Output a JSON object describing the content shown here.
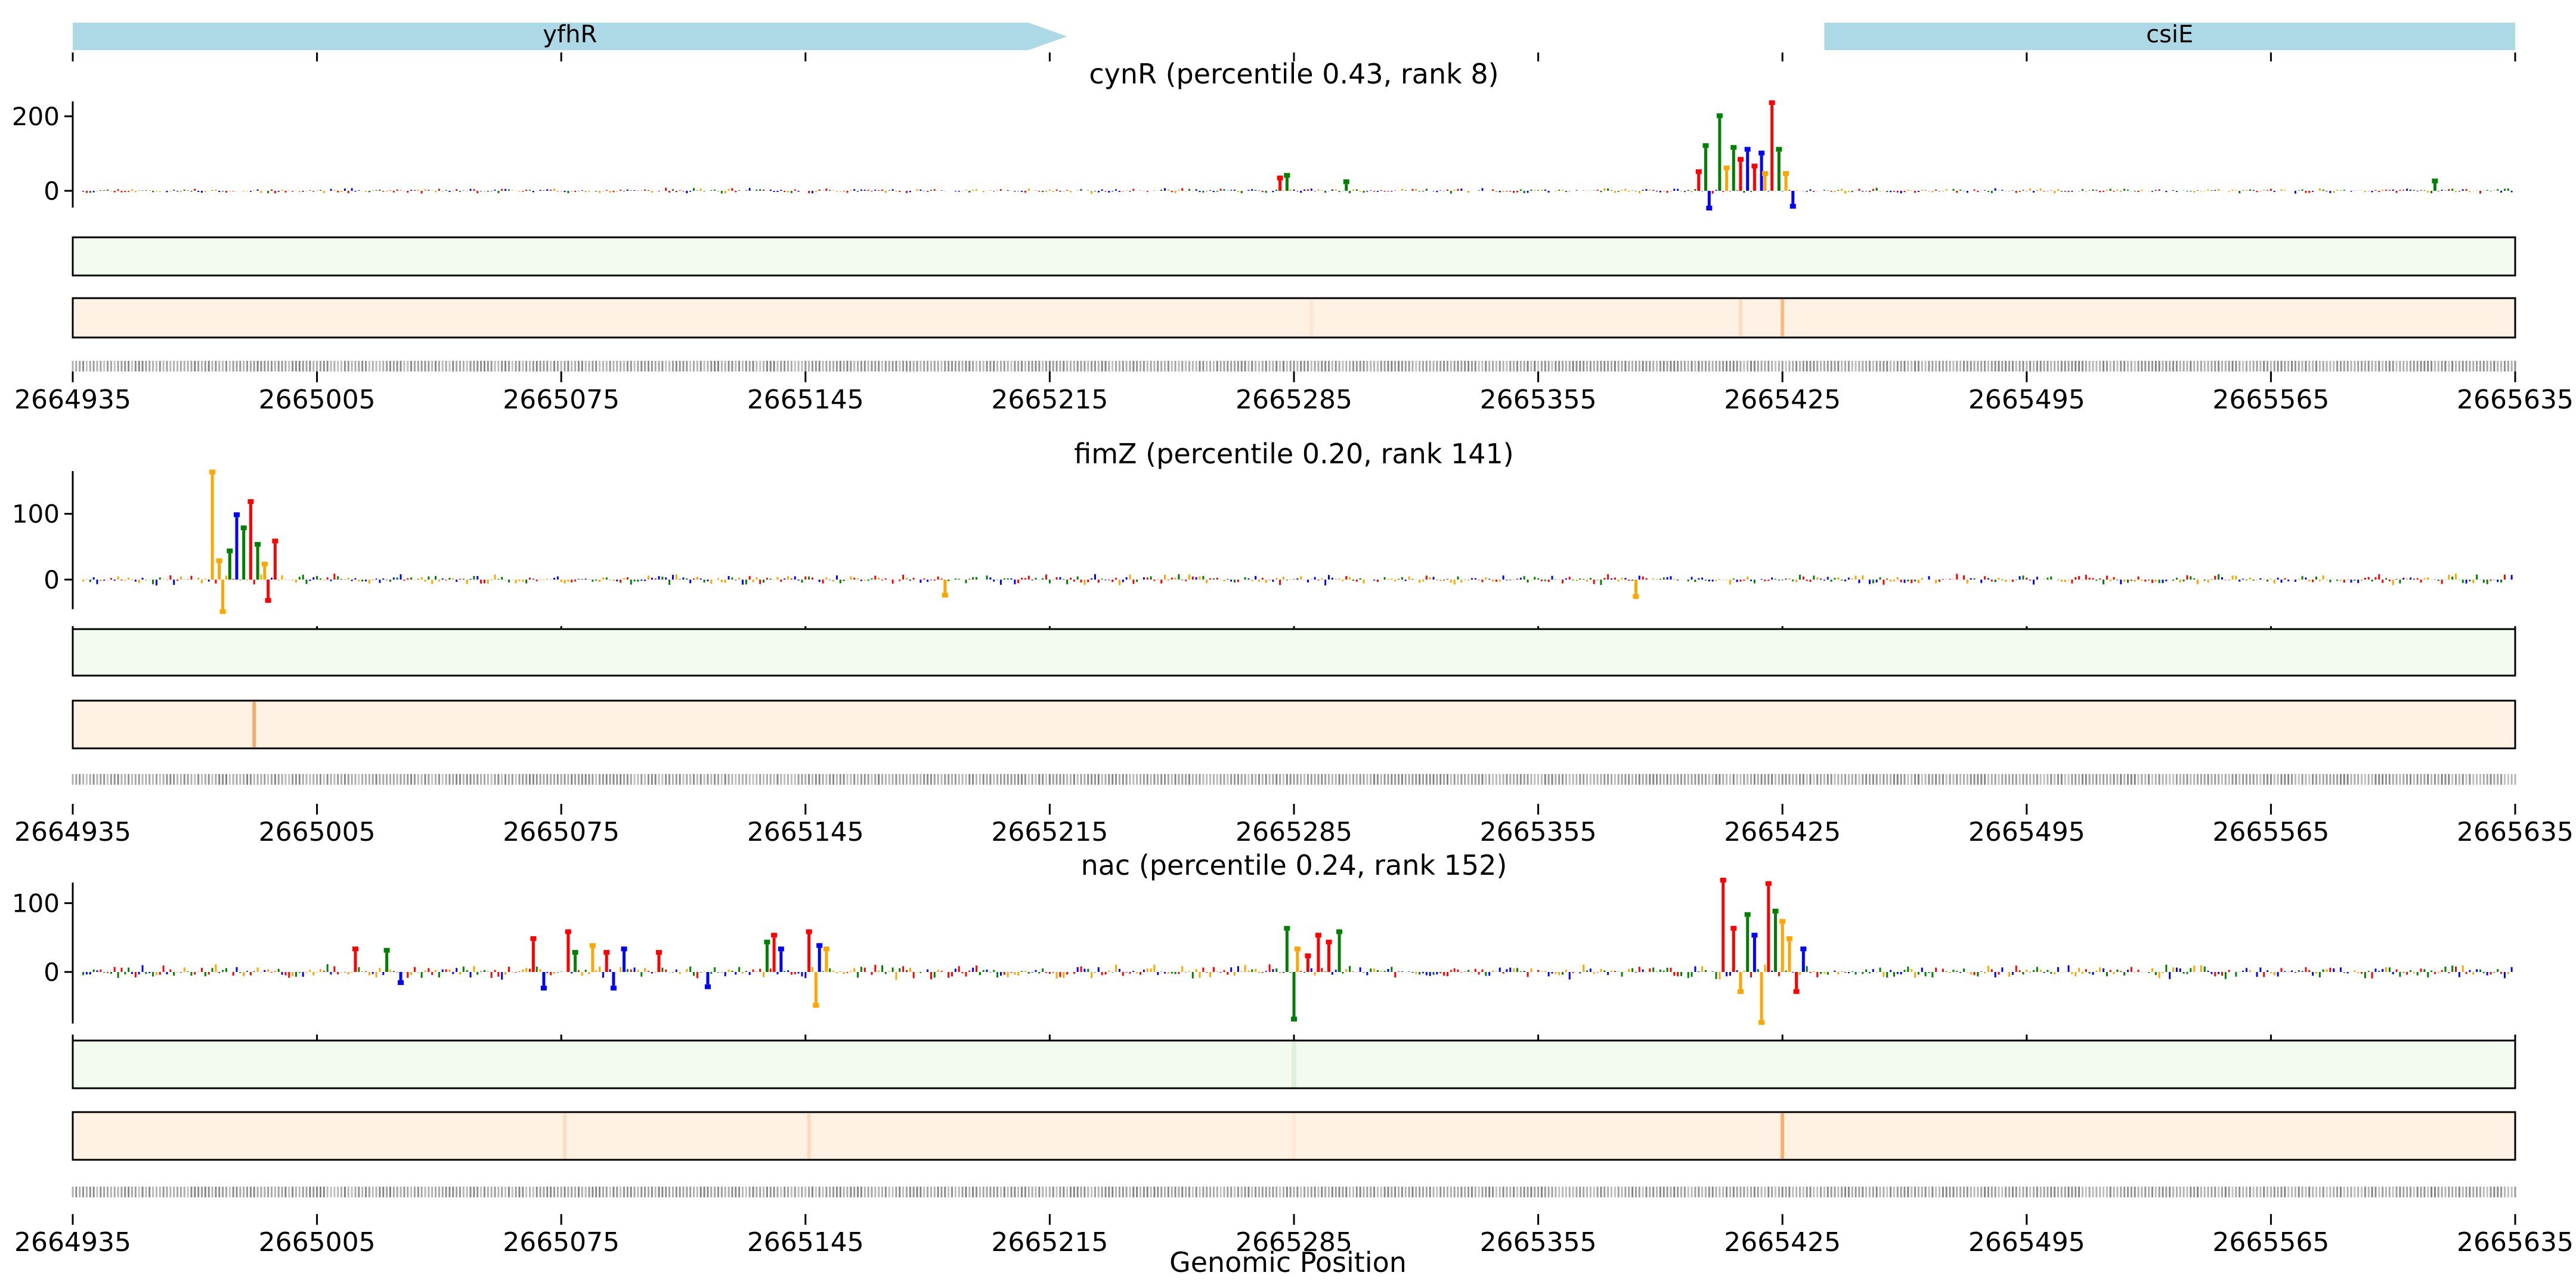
{
  "genes": [
    {
      "name": "yfhR",
      "start": 2664935,
      "end": 2665220,
      "strand": "+",
      "color": "#add8e6"
    },
    {
      "name": "csiE",
      "start": 2665437,
      "end": 2665635,
      "strand": "+",
      "color": "#add8e6"
    }
  ],
  "colors": {
    "A": "#008000",
    "C": "#0000ff",
    "G": "#ffa500",
    "T": "#ff0000",
    "green_track": "#f3faf0",
    "orange_track": "#fff1e4",
    "orange_peak": "#f5a55b",
    "seq_text": "#555555"
  },
  "chart_data": [
    {
      "type": "bar",
      "title": "cynR (percentile 0.43, rank 8)",
      "ylim": [
        -45,
        240
      ],
      "yticks": [
        0,
        200
      ],
      "xlim": [
        2664935,
        2665635
      ],
      "xticks": [
        "2664935",
        "2665005",
        "2665075",
        "2665145",
        "2665215",
        "2665285",
        "2665355",
        "2665425",
        "2665495",
        "2665565",
        "2665635"
      ],
      "noise_level": 6,
      "noise_seed": 11,
      "peaks": [
        {
          "x": 2665401,
          "value": 45,
          "base": "T"
        },
        {
          "x": 2665403,
          "value": 115,
          "base": "A"
        },
        {
          "x": 2665404,
          "value": -40,
          "base": "C"
        },
        {
          "x": 2665407,
          "value": 195,
          "base": "A"
        },
        {
          "x": 2665409,
          "value": 55,
          "base": "G"
        },
        {
          "x": 2665411,
          "value": 110,
          "base": "A"
        },
        {
          "x": 2665413,
          "value": 78,
          "base": "T"
        },
        {
          "x": 2665415,
          "value": 105,
          "base": "C"
        },
        {
          "x": 2665417,
          "value": 60,
          "base": "T"
        },
        {
          "x": 2665419,
          "value": 95,
          "base": "C"
        },
        {
          "x": 2665420,
          "value": 40,
          "base": "G"
        },
        {
          "x": 2665422,
          "value": 230,
          "base": "T"
        },
        {
          "x": 2665424,
          "value": 105,
          "base": "A"
        },
        {
          "x": 2665426,
          "value": 40,
          "base": "G"
        },
        {
          "x": 2665428,
          "value": -35,
          "base": "C"
        },
        {
          "x": 2665281,
          "value": 28,
          "base": "T"
        },
        {
          "x": 2665283,
          "value": 35,
          "base": "A"
        },
        {
          "x": 2665300,
          "value": 18,
          "base": "A"
        },
        {
          "x": 2665612,
          "value": 20,
          "base": "A"
        }
      ],
      "green_track": [],
      "orange_track": [
        {
          "x": 2665425,
          "value": 0.7
        },
        {
          "x": 2665413,
          "value": 0.25
        },
        {
          "x": 2665290,
          "value": 0.12
        }
      ]
    },
    {
      "type": "bar",
      "title": "fimZ (percentile 0.20, rank 141)",
      "ylim": [
        -45,
        165
      ],
      "yticks": [
        0,
        100
      ],
      "xlim": [
        2664935,
        2665635
      ],
      "xticks": [
        "2664935",
        "2665005",
        "2665075",
        "2665145",
        "2665215",
        "2665285",
        "2665355",
        "2665425",
        "2665495",
        "2665565",
        "2665635"
      ],
      "noise_level": 7,
      "noise_seed": 23,
      "peaks": [
        {
          "x": 2664975,
          "value": 160,
          "base": "G"
        },
        {
          "x": 2664977,
          "value": 25,
          "base": "G"
        },
        {
          "x": 2664978,
          "value": -45,
          "base": "G"
        },
        {
          "x": 2664980,
          "value": 40,
          "base": "A"
        },
        {
          "x": 2664982,
          "value": 95,
          "base": "C"
        },
        {
          "x": 2664984,
          "value": 75,
          "base": "A"
        },
        {
          "x": 2664986,
          "value": 115,
          "base": "T"
        },
        {
          "x": 2664988,
          "value": 50,
          "base": "A"
        },
        {
          "x": 2664990,
          "value": 20,
          "base": "G"
        },
        {
          "x": 2664991,
          "value": -28,
          "base": "T"
        },
        {
          "x": 2664993,
          "value": 55,
          "base": "T"
        },
        {
          "x": 2665185,
          "value": -20,
          "base": "G"
        },
        {
          "x": 2665383,
          "value": -22,
          "base": "G"
        }
      ],
      "green_track": [],
      "orange_track": [
        {
          "x": 2664987,
          "value": 0.9
        }
      ]
    },
    {
      "type": "bar",
      "title": "nac (percentile 0.24, rank 152)",
      "ylim": [
        -75,
        130
      ],
      "yticks": [
        0,
        100
      ],
      "xlim": [
        2664935,
        2665635
      ],
      "xticks": [
        "2664935",
        "2665005",
        "2665075",
        "2665145",
        "2665215",
        "2665285",
        "2665355",
        "2665425",
        "2665495",
        "2665565",
        "2665635"
      ],
      "noise_level": 9,
      "noise_seed": 37,
      "peaks": [
        {
          "x": 2665016,
          "value": 30,
          "base": "T"
        },
        {
          "x": 2665025,
          "value": 28,
          "base": "A"
        },
        {
          "x": 2665029,
          "value": -12,
          "base": "C"
        },
        {
          "x": 2665067,
          "value": 45,
          "base": "T"
        },
        {
          "x": 2665070,
          "value": -20,
          "base": "C"
        },
        {
          "x": 2665077,
          "value": 55,
          "base": "T"
        },
        {
          "x": 2665079,
          "value": 25,
          "base": "A"
        },
        {
          "x": 2665084,
          "value": 35,
          "base": "G"
        },
        {
          "x": 2665088,
          "value": 25,
          "base": "T"
        },
        {
          "x": 2665090,
          "value": -20,
          "base": "C"
        },
        {
          "x": 2665093,
          "value": 30,
          "base": "C"
        },
        {
          "x": 2665103,
          "value": 25,
          "base": "T"
        },
        {
          "x": 2665117,
          "value": -18,
          "base": "C"
        },
        {
          "x": 2665134,
          "value": 40,
          "base": "A"
        },
        {
          "x": 2665136,
          "value": 50,
          "base": "T"
        },
        {
          "x": 2665138,
          "value": 30,
          "base": "C"
        },
        {
          "x": 2665146,
          "value": 55,
          "base": "T"
        },
        {
          "x": 2665148,
          "value": -45,
          "base": "G"
        },
        {
          "x": 2665149,
          "value": 35,
          "base": "C"
        },
        {
          "x": 2665151,
          "value": 30,
          "base": "G"
        },
        {
          "x": 2665283,
          "value": 60,
          "base": "A"
        },
        {
          "x": 2665285,
          "value": -65,
          "base": "A"
        },
        {
          "x": 2665286,
          "value": 30,
          "base": "G"
        },
        {
          "x": 2665289,
          "value": 20,
          "base": "T"
        },
        {
          "x": 2665292,
          "value": 50,
          "base": "T"
        },
        {
          "x": 2665295,
          "value": 40,
          "base": "T"
        },
        {
          "x": 2665298,
          "value": 55,
          "base": "A"
        },
        {
          "x": 2665408,
          "value": 130,
          "base": "T"
        },
        {
          "x": 2665411,
          "value": 60,
          "base": "T"
        },
        {
          "x": 2665413,
          "value": -25,
          "base": "G"
        },
        {
          "x": 2665415,
          "value": 80,
          "base": "A"
        },
        {
          "x": 2665417,
          "value": 50,
          "base": "C"
        },
        {
          "x": 2665419,
          "value": -70,
          "base": "G"
        },
        {
          "x": 2665421,
          "value": 125,
          "base": "T"
        },
        {
          "x": 2665423,
          "value": 85,
          "base": "A"
        },
        {
          "x": 2665425,
          "value": 70,
          "base": "G"
        },
        {
          "x": 2665427,
          "value": 45,
          "base": "G"
        },
        {
          "x": 2665429,
          "value": -25,
          "base": "T"
        },
        {
          "x": 2665431,
          "value": 30,
          "base": "C"
        }
      ],
      "green_track": [
        {
          "x": 2665285,
          "value": 0.15
        }
      ],
      "orange_track": [
        {
          "x": 2665425,
          "value": 0.85
        },
        {
          "x": 2665146,
          "value": 0.3
        },
        {
          "x": 2665076,
          "value": 0.25
        },
        {
          "x": 2665285,
          "value": 0.1
        }
      ]
    }
  ],
  "xlabel": "Genomic Position"
}
